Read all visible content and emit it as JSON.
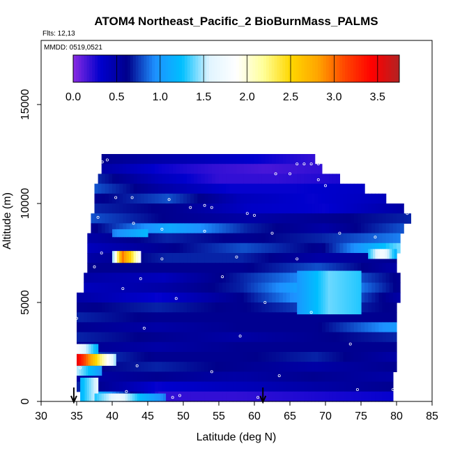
{
  "chart_data": {
    "type": "heatmap",
    "title": "ATOM4 Northeast_Pacific_2 BioBurnMass_PALMS",
    "annotations": {
      "flights": "Flts: 12,13",
      "dates": "MMDD: 0519,0521"
    },
    "xlabel": "Latitude (deg N)",
    "ylabel": "Altitude (m)",
    "xlim": [
      30,
      85
    ],
    "ylim": [
      0,
      17500
    ],
    "xticks": [
      "30",
      "35",
      "40",
      "45",
      "50",
      "55",
      "60",
      "65",
      "70",
      "75",
      "80",
      "85"
    ],
    "yticks": [
      "0",
      "5000",
      "10000",
      "15000"
    ],
    "colorbar": {
      "min": 0,
      "max": 3.75,
      "ticks": [
        "0.0",
        "0.5",
        "1.0",
        "1.5",
        "2.0",
        "2.5",
        "3.0",
        "3.5"
      ],
      "stops": [
        "#8a2be2",
        "#0000cd",
        "#00008b",
        "#1e90ff",
        "#00bfff",
        "#e0f4ff",
        "#ffffff",
        "#ffff99",
        "#ffd700",
        "#ffa500",
        "#ff4500",
        "#ff0000",
        "#b22222"
      ]
    },
    "arrows_at_latitude": [
      34.6,
      61.2
    ],
    "rows": [
      {
        "alt": 12000,
        "lat_min": 38.5,
        "lat_max": 68.5,
        "values": [
          0.6,
          0.5,
          0.4,
          0.3,
          0.2
        ]
      },
      {
        "alt": 11500,
        "lat_min": 38.5,
        "lat_max": 69.5,
        "values": [
          0.5,
          0.3,
          0.2,
          0.15,
          0.2
        ]
      },
      {
        "alt": 11000,
        "lat_min": 38.0,
        "lat_max": 72.0,
        "values": [
          0.7,
          0.4,
          0.2,
          0.2,
          0.25
        ]
      },
      {
        "alt": 10500,
        "lat_min": 37.5,
        "lat_max": 75.5,
        "values": [
          0.8,
          0.5,
          0.3,
          0.3,
          0.35
        ]
      },
      {
        "alt": 10000,
        "lat_min": 37.5,
        "lat_max": 78.5,
        "values": [
          0.6,
          0.8,
          0.4,
          0.3,
          0.4
        ]
      },
      {
        "alt": 9500,
        "lat_min": 37.5,
        "lat_max": 81.0,
        "values": [
          0.7,
          0.6,
          0.35,
          0.3,
          0.5
        ]
      },
      {
        "alt": 9000,
        "lat_min": 37.0,
        "lat_max": 82.0,
        "values": [
          0.8,
          0.6,
          0.5,
          0.6,
          0.7
        ]
      },
      {
        "alt": 8500,
        "lat_min": 37.0,
        "lat_max": 81.0,
        "values": [
          0.6,
          1.1,
          0.7,
          0.5,
          0.8
        ]
      },
      {
        "alt": 8000,
        "lat_min": 36.5,
        "lat_max": 80.5,
        "values": [
          0.5,
          0.7,
          0.6,
          0.7,
          0.9
        ]
      },
      {
        "alt": 7500,
        "lat_min": 36.5,
        "lat_max": 80.5,
        "values": [
          0.4,
          0.6,
          0.8,
          0.6,
          1.4
        ]
      },
      {
        "alt": 7000,
        "lat_min": 36.5,
        "lat_max": 80.0,
        "values": [
          0.5,
          0.7,
          0.7,
          0.5,
          0.6
        ]
      },
      {
        "alt": 6500,
        "lat_min": 36.5,
        "lat_max": 80.0,
        "values": [
          0.6,
          0.6,
          0.6,
          0.8,
          0.5
        ]
      },
      {
        "alt": 6000,
        "lat_min": 36.0,
        "lat_max": 80.5,
        "values": [
          0.5,
          0.4,
          0.7,
          1.0,
          0.6
        ]
      },
      {
        "alt": 5500,
        "lat_min": 36.0,
        "lat_max": 80.5,
        "values": [
          0.4,
          0.5,
          0.7,
          1.2,
          0.6
        ]
      },
      {
        "alt": 5000,
        "lat_min": 35.0,
        "lat_max": 80.5,
        "values": [
          0.5,
          0.3,
          0.6,
          1.1,
          0.5
        ]
      },
      {
        "alt": 4500,
        "lat_min": 35.0,
        "lat_max": 80.0,
        "values": [
          0.6,
          0.7,
          0.6,
          0.8,
          0.6
        ]
      },
      {
        "alt": 4000,
        "lat_min": 35.0,
        "lat_max": 80.0,
        "values": [
          0.7,
          0.6,
          0.6,
          0.6,
          0.6
        ]
      },
      {
        "alt": 3500,
        "lat_min": 35.0,
        "lat_max": 80.0,
        "values": [
          0.6,
          0.5,
          0.6,
          0.6,
          1.0
        ]
      },
      {
        "alt": 3000,
        "lat_min": 35.0,
        "lat_max": 80.0,
        "values": [
          0.7,
          0.6,
          0.5,
          0.6,
          0.7
        ]
      },
      {
        "alt": 2500,
        "lat_min": 35.0,
        "lat_max": 80.0,
        "values": [
          0.6,
          0.5,
          0.6,
          0.6,
          0.6
        ]
      },
      {
        "alt": 2000,
        "lat_min": 35.0,
        "lat_max": 80.0,
        "values": [
          0.8,
          0.6,
          0.6,
          0.7,
          0.5
        ]
      },
      {
        "alt": 1500,
        "lat_min": 35.0,
        "lat_max": 80.0,
        "values": [
          0.6,
          0.7,
          0.6,
          0.5,
          0.6
        ]
      },
      {
        "alt": 1000,
        "lat_min": 35.0,
        "lat_max": 79.5,
        "values": [
          0.5,
          0.6,
          0.5,
          0.6,
          0.5
        ]
      },
      {
        "alt": 500,
        "lat_min": 35.0,
        "lat_max": 79.5,
        "values": [
          0.7,
          0.3,
          0.4,
          0.5,
          0.6
        ]
      },
      {
        "alt": 0,
        "lat_min": 35.5,
        "lat_max": 79.5,
        "values": [
          1.4,
          0.2,
          0.2,
          0.25,
          0.3
        ]
      }
    ],
    "hotspots": [
      {
        "lat_min": 40.0,
        "lat_max": 44.0,
        "alt_min": 7000,
        "alt_max": 7600,
        "values": [
          1.5,
          3.0,
          2.5,
          1.8
        ]
      },
      {
        "lat_min": 35.0,
        "lat_max": 40.5,
        "alt_min": 1800,
        "alt_max": 2400,
        "values": [
          3.5,
          2.5,
          1.5
        ]
      },
      {
        "lat_min": 35.0,
        "lat_max": 38.0,
        "alt_min": 2400,
        "alt_max": 2900,
        "values": [
          1.8,
          1.2
        ]
      },
      {
        "lat_min": 35.0,
        "lat_max": 38.5,
        "alt_min": 1300,
        "alt_max": 1800,
        "values": [
          1.5,
          1.0
        ]
      },
      {
        "lat_min": 35.5,
        "lat_max": 38.0,
        "alt_min": 0,
        "alt_max": 1200,
        "values": [
          1.2,
          1.6
        ]
      },
      {
        "lat_min": 37.5,
        "lat_max": 47.5,
        "alt_min": 0,
        "alt_max": 400,
        "values": [
          1.3,
          1.7,
          1.2,
          0.9
        ]
      },
      {
        "lat_min": 40.0,
        "lat_max": 45.0,
        "alt_min": 8300,
        "alt_max": 8700,
        "values": [
          0.9,
          1.2
        ]
      },
      {
        "lat_min": 76.0,
        "lat_max": 80.0,
        "alt_min": 7200,
        "alt_max": 7700,
        "values": [
          1.3,
          1.8,
          1.2
        ]
      },
      {
        "lat_min": 66.0,
        "lat_max": 75.0,
        "alt_min": 4400,
        "alt_max": 6600,
        "values": [
          1.0,
          1.4,
          1.3
        ]
      }
    ],
    "sample_points": [
      [
        38.6,
        12100
      ],
      [
        39.3,
        12200
      ],
      [
        66.0,
        12000
      ],
      [
        67.0,
        12000
      ],
      [
        68.0,
        12000
      ],
      [
        69.0,
        12000
      ],
      [
        63.0,
        11500
      ],
      [
        65.0,
        11500
      ],
      [
        69.0,
        11200
      ],
      [
        70.0,
        10900
      ],
      [
        40.5,
        10300
      ],
      [
        42.8,
        10300
      ],
      [
        48.0,
        10200
      ],
      [
        51.0,
        9800
      ],
      [
        53.0,
        9900
      ],
      [
        54.0,
        9800
      ],
      [
        59.0,
        9500
      ],
      [
        60.0,
        9400
      ],
      [
        81.5,
        9500
      ],
      [
        38.0,
        9300
      ],
      [
        43.0,
        9000
      ],
      [
        47.0,
        8700
      ],
      [
        53.0,
        8600
      ],
      [
        62.5,
        8500
      ],
      [
        72.0,
        8500
      ],
      [
        77.0,
        8300
      ],
      [
        38.5,
        7500
      ],
      [
        47.0,
        7200
      ],
      [
        57.5,
        7300
      ],
      [
        66.0,
        7200
      ],
      [
        80.5,
        7200
      ],
      [
        37.5,
        6800
      ],
      [
        44.0,
        6200
      ],
      [
        55.5,
        6300
      ],
      [
        41.5,
        5700
      ],
      [
        49.0,
        5200
      ],
      [
        61.5,
        5000
      ],
      [
        68.0,
        4500
      ],
      [
        35.0,
        4200
      ],
      [
        44.5,
        3700
      ],
      [
        58.0,
        3300
      ],
      [
        73.5,
        2900
      ],
      [
        35.5,
        1700
      ],
      [
        43.5,
        1800
      ],
      [
        54.0,
        1500
      ],
      [
        63.5,
        1300
      ],
      [
        74.5,
        600
      ],
      [
        79.5,
        600
      ],
      [
        42.0,
        500
      ],
      [
        48.5,
        200
      ],
      [
        60.5,
        200
      ],
      [
        49.5,
        300
      ]
    ]
  }
}
